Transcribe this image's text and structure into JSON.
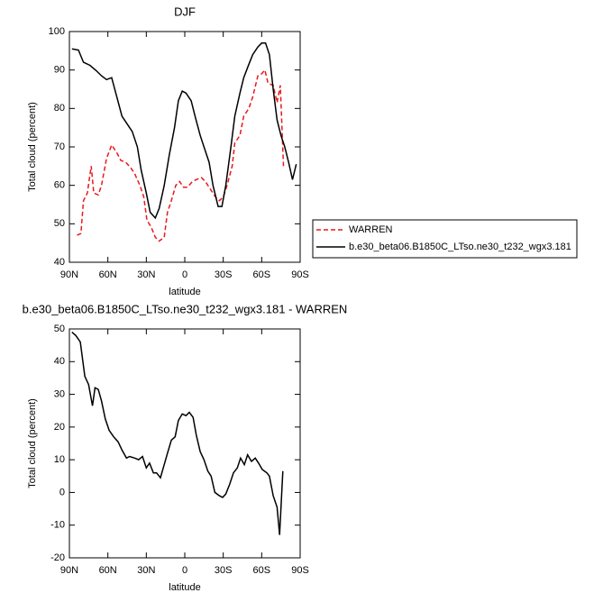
{
  "chart_data": [
    {
      "type": "line",
      "title": "DJF",
      "xlabel": "latitude",
      "ylabel": "Total cloud (percent)",
      "xlim": [
        90,
        -90
      ],
      "xticks": [
        {
          "value": 90,
          "label": "90N"
        },
        {
          "value": 60,
          "label": "60N"
        },
        {
          "value": 30,
          "label": "30N"
        },
        0,
        {
          "value": -30,
          "label": "30S"
        },
        {
          "value": -60,
          "label": "60S"
        },
        {
          "value": -90,
          "label": "90S"
        }
      ],
      "ylim": [
        40,
        100
      ],
      "yticks": [
        40,
        50,
        60,
        70,
        80,
        90,
        100
      ],
      "legend": "right",
      "series": [
        {
          "name": "WARREN",
          "color": "#e8191c",
          "linestyle": "dashed",
          "x": [
            84,
            81,
            79,
            76,
            73,
            71,
            67.5,
            65,
            61,
            57,
            53,
            50,
            46,
            42,
            39,
            35,
            32,
            29.5,
            26,
            23,
            20,
            16,
            13.5,
            10.5,
            7,
            4,
            1,
            -2,
            -6,
            -9,
            -13,
            -16,
            -20,
            -24,
            -27,
            -30,
            -33,
            -37,
            -39,
            -43,
            -46,
            -50,
            -53,
            -57,
            -60,
            -62.5,
            -65,
            -69,
            -72,
            -74.5,
            -77
          ],
          "values": [
            47,
            47.5,
            56,
            58,
            65,
            58,
            57.5,
            60,
            67,
            70.5,
            68.5,
            66.5,
            66,
            64.5,
            63,
            60,
            57,
            51,
            49,
            46.5,
            45.5,
            46.5,
            53,
            56,
            60,
            61,
            59.5,
            59.5,
            61,
            61.5,
            62,
            61,
            59,
            57,
            56,
            57,
            60,
            65,
            71,
            73,
            78,
            80,
            83,
            88.5,
            89,
            90,
            86.5,
            86,
            81.5,
            86,
            65
          ]
        },
        {
          "name": "b.e30_beta06.B1850C_LTso.ne30_t232_wgx3.181",
          "color": "#000000",
          "linestyle": "solid",
          "x": [
            88,
            83,
            79,
            74,
            69,
            65,
            61,
            57,
            53,
            49,
            45,
            41,
            37,
            34,
            30,
            27,
            23,
            20,
            16,
            12,
            8,
            5,
            2,
            -1,
            -5,
            -8,
            -12,
            -15,
            -19,
            -22,
            -26,
            -29,
            -32,
            -36,
            -39,
            -43,
            -46,
            -50,
            -53,
            -57,
            -60,
            -63,
            -66,
            -69,
            -72,
            -75,
            -78,
            -81,
            -84,
            -87
          ],
          "values": [
            95.5,
            95.2,
            92,
            91.2,
            89.8,
            88.5,
            87.5,
            88,
            83,
            78,
            76,
            74,
            70,
            64,
            58,
            53,
            51.5,
            54,
            60,
            68,
            75,
            82,
            84.5,
            84,
            82,
            78,
            73,
            70,
            66,
            60,
            54.5,
            54.5,
            60,
            70,
            78,
            84,
            88,
            91.5,
            94,
            96,
            97,
            97,
            94,
            85,
            77,
            73,
            70,
            66,
            61.5,
            65.5
          ]
        }
      ]
    },
    {
      "type": "line",
      "title": "b.e30_beta06.B1850C_LTso.ne30_t232_wgx3.181 - WARREN",
      "xlabel": "latitude",
      "ylabel": "Total cloud (percent)",
      "xlim": [
        90,
        -90
      ],
      "xticks": [
        {
          "value": 90,
          "label": "90N"
        },
        {
          "value": 60,
          "label": "60N"
        },
        {
          "value": 30,
          "label": "30N"
        },
        0,
        {
          "value": -30,
          "label": "30S"
        },
        {
          "value": -60,
          "label": "60S"
        },
        {
          "value": -90,
          "label": "90S"
        }
      ],
      "ylim": [
        -20,
        50
      ],
      "yticks": [
        -20,
        -10,
        0,
        10,
        20,
        30,
        40,
        50
      ],
      "series": [
        {
          "color": "#000000",
          "linestyle": "solid",
          "x": [
            88,
            85,
            81.5,
            78,
            75,
            72,
            70,
            67.5,
            65,
            62,
            59,
            55.5,
            52,
            49,
            45.5,
            43,
            39,
            36,
            33,
            30,
            27.5,
            24.5,
            22,
            19,
            16,
            13.5,
            10.5,
            7.5,
            5,
            2,
            -1,
            -3.5,
            -6.5,
            -9,
            -12,
            -15,
            -18,
            -20.5,
            -23.5,
            -27,
            -29.5,
            -32,
            -35,
            -38,
            -41,
            -43.5,
            -46.5,
            -49,
            -52,
            -55,
            -57.5,
            -60.5,
            -64,
            -66,
            -69,
            -72,
            -74,
            -76.5
          ],
          "values": [
            49,
            48,
            46,
            35.5,
            33,
            26.5,
            32,
            31.5,
            28,
            22.5,
            19,
            17,
            15.5,
            13,
            10.5,
            11,
            10.5,
            10,
            11,
            7.5,
            9,
            6,
            6,
            4.5,
            8.5,
            12,
            16,
            17,
            22,
            24,
            23.5,
            24.5,
            23,
            17.5,
            12.5,
            10,
            6.5,
            5,
            0,
            -1,
            -1.5,
            -0.5,
            2.5,
            6,
            7.5,
            10.5,
            8.5,
            11.5,
            9.5,
            10.5,
            9,
            7,
            6,
            5,
            -1,
            -4.5,
            -13,
            6.5
          ]
        }
      ]
    }
  ]
}
